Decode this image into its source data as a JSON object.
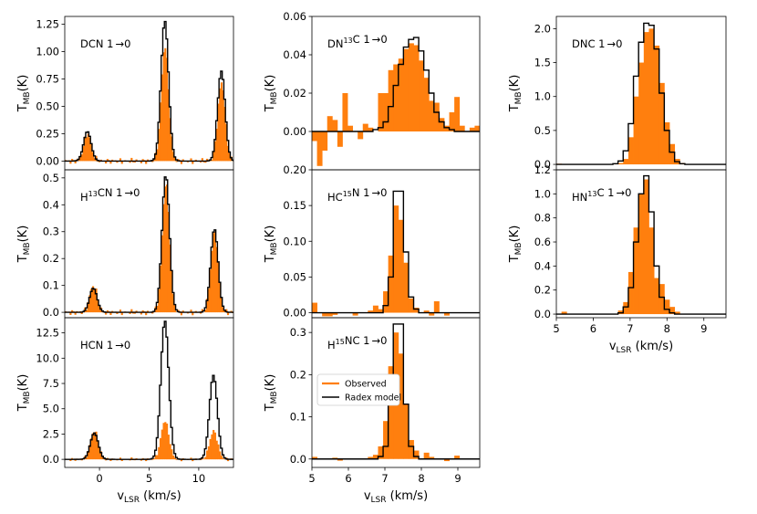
{
  "colors": {
    "observed": "#ff7f0e",
    "model": "#000000",
    "axis": "#000000"
  },
  "legend": {
    "observed_label": "Observed",
    "model_label": "Radex model"
  },
  "shared_xlabel": "v",
  "shared_xlabel_sub": "LSR",
  "shared_xlabel_unit": " (km/s)",
  "shared_ylabel": "T",
  "shared_ylabel_sub": "MB",
  "shared_ylabel_unit": "(K)",
  "chart_data": [
    {
      "id": "dcn",
      "type": "step",
      "label_parts": [
        {
          "t": "DCN 1"
        },
        {
          "t": "→",
          "arrow": true
        },
        {
          "t": "0"
        }
      ],
      "xlim": [
        -3.5,
        13.5
      ],
      "ylim": [
        -0.08,
        1.32
      ],
      "yticks": [
        0,
        0.25,
        0.5,
        0.75,
        1.0,
        1.25
      ],
      "ytick_labels": [
        "0.00",
        "0.25",
        "0.50",
        "0.75",
        "1.00",
        "1.25"
      ],
      "xticks": [],
      "xtick_labels": [],
      "obs_kind": "hfs",
      "obs_noise": 0.03,
      "peaks": [
        {
          "v": -1.3,
          "h": 0.25,
          "w": 0.38,
          "mh": 0.27
        },
        {
          "v": 6.5,
          "h": 1.05,
          "w": 0.38,
          "mh": 1.28
        },
        {
          "v": 12.2,
          "h": 0.72,
          "w": 0.38,
          "mh": 0.82
        }
      ]
    },
    {
      "id": "h13cn",
      "type": "step",
      "label_parts": [
        {
          "t": "H"
        },
        {
          "t": "13",
          "sup": true
        },
        {
          "t": "CN 1"
        },
        {
          "t": "→",
          "arrow": true
        },
        {
          "t": "0"
        }
      ],
      "xlim": [
        -3.5,
        13.5
      ],
      "ylim": [
        -0.02,
        0.53
      ],
      "yticks": [
        0,
        0.1,
        0.2,
        0.3,
        0.4,
        0.5
      ],
      "ytick_labels": [
        "0.0",
        "0.1",
        "0.2",
        "0.3",
        "0.4",
        "0.5"
      ],
      "xticks": [],
      "xtick_labels": [],
      "obs_kind": "hfs",
      "obs_noise": 0.012,
      "peaks": [
        {
          "v": -0.7,
          "h": 0.1,
          "w": 0.38,
          "mh": 0.09
        },
        {
          "v": 6.6,
          "h": 0.48,
          "w": 0.38,
          "mh": 0.51
        },
        {
          "v": 11.5,
          "h": 0.3,
          "w": 0.38,
          "mh": 0.31
        }
      ]
    },
    {
      "id": "hcn",
      "type": "step",
      "label_parts": [
        {
          "t": "HCN 1"
        },
        {
          "t": "→",
          "arrow": true
        },
        {
          "t": "0"
        }
      ],
      "xlim": [
        -3.5,
        13.5
      ],
      "ylim": [
        -0.8,
        14.0
      ],
      "yticks": [
        0,
        2.5,
        5.0,
        7.5,
        10.0,
        12.5
      ],
      "ytick_labels": [
        "0.0",
        "2.5",
        "5.0",
        "7.5",
        "10.0",
        "12.5"
      ],
      "xticks": [
        0,
        5,
        10
      ],
      "xtick_labels": [
        "0",
        "5",
        "10"
      ],
      "obs_kind": "hfs",
      "obs_noise": 0.2,
      "peaks": [
        {
          "v": -0.6,
          "h": 2.8,
          "w": 0.4,
          "mh": 2.6
        },
        {
          "v": 6.5,
          "h": 3.8,
          "w": 0.4,
          "mh": 13.7
        },
        {
          "v": 11.4,
          "h": 2.8,
          "w": 0.4,
          "mh": 8.3
        }
      ]
    },
    {
      "id": "dn13c",
      "type": "step",
      "label_parts": [
        {
          "t": "DN"
        },
        {
          "t": "13",
          "sup": true
        },
        {
          "t": "C 1"
        },
        {
          "t": "→",
          "arrow": true
        },
        {
          "t": "0"
        }
      ],
      "xlim": [
        5.0,
        9.6
      ],
      "ylim": [
        -0.02,
        0.06
      ],
      "yticks": [
        0,
        0.02,
        0.04,
        0.06
      ],
      "ytick_labels": [
        "0.00",
        "0.02",
        "0.04",
        "0.06"
      ],
      "xticks": [],
      "xtick_labels": [],
      "obs": [
        -0.005,
        -0.018,
        -0.01,
        0.008,
        0.006,
        -0.008,
        0.02,
        0.003,
        0.0,
        -0.004,
        0.004,
        0.002,
        0.0,
        0.02,
        0.02,
        0.032,
        0.035,
        0.038,
        0.043,
        0.046,
        0.045,
        0.037,
        0.028,
        0.016,
        0.015,
        0.007,
        0.003,
        0.01,
        0.018,
        0.003,
        0.0,
        0.002,
        0.003
      ],
      "model": [
        0.0,
        0.0,
        0.0,
        0.0,
        0.0,
        0.0,
        0.0,
        0.0,
        0.0,
        0.0,
        0.0,
        0.0,
        0.001,
        0.002,
        0.005,
        0.013,
        0.024,
        0.035,
        0.044,
        0.048,
        0.049,
        0.042,
        0.032,
        0.02,
        0.01,
        0.005,
        0.002,
        0.001,
        0.0,
        0.0,
        0.0,
        0.0,
        0.0
      ]
    },
    {
      "id": "hc15n",
      "type": "step",
      "label_parts": [
        {
          "t": "HC"
        },
        {
          "t": "15",
          "sup": true
        },
        {
          "t": "N 1"
        },
        {
          "t": "→",
          "arrow": true
        },
        {
          "t": "0"
        }
      ],
      "xlim": [
        5.0,
        9.6
      ],
      "ylim": [
        -0.007,
        0.2
      ],
      "yticks": [
        0,
        0.05,
        0.1,
        0.15,
        0.2
      ],
      "ytick_labels": [
        "0.00",
        "0.05",
        "0.10",
        "0.15",
        "0.20"
      ],
      "xticks": [],
      "xtick_labels": [],
      "obs": [
        0.014,
        0.0,
        -0.005,
        -0.005,
        -0.003,
        0.0,
        0.0,
        0.0,
        -0.004,
        0.0,
        0.0,
        0.003,
        0.01,
        0.005,
        0.03,
        0.08,
        0.15,
        0.13,
        0.07,
        0.02,
        0.007,
        0.0,
        0.003,
        -0.004,
        0.016,
        0.0,
        -0.004,
        0.0,
        0.0,
        0.0,
        0.0,
        0.0,
        0.0
      ],
      "model": [
        0.0,
        0.0,
        0.0,
        0.0,
        0.0,
        0.0,
        0.0,
        0.0,
        0.0,
        0.0,
        0.0,
        0.0,
        0.0,
        0.0,
        0.01,
        0.05,
        0.17,
        0.17,
        0.085,
        0.022,
        0.005,
        0.0,
        0.0,
        0.0,
        0.0,
        0.0,
        0.0,
        0.0,
        0.0,
        0.0,
        0.0,
        0.0,
        0.0
      ]
    },
    {
      "id": "h15nc",
      "type": "step",
      "label_parts": [
        {
          "t": "H"
        },
        {
          "t": "15",
          "sup": true
        },
        {
          "t": "NC 1"
        },
        {
          "t": "→",
          "arrow": true
        },
        {
          "t": "0"
        }
      ],
      "xlim": [
        5.0,
        9.6
      ],
      "ylim": [
        -0.02,
        0.335
      ],
      "yticks": [
        0,
        0.1,
        0.2,
        0.3
      ],
      "ytick_labels": [
        "0.0",
        "0.1",
        "0.2",
        "0.3"
      ],
      "xticks": [
        5,
        6,
        7,
        8,
        9
      ],
      "xtick_labels": [
        "5",
        "6",
        "7",
        "8",
        "9"
      ],
      "legend": true,
      "obs": [
        0.005,
        0.0,
        0.0,
        0.0,
        0.003,
        -0.004,
        0.0,
        0.0,
        0.0,
        0.0,
        0.0,
        0.005,
        0.01,
        0.03,
        0.09,
        0.22,
        0.3,
        0.25,
        0.13,
        0.045,
        0.02,
        0.0,
        0.015,
        0.005,
        0.0,
        0.0,
        -0.005,
        0.0,
        0.008,
        0.0,
        0.0,
        0.0,
        0.0
      ],
      "model": [
        0.0,
        0.0,
        0.0,
        0.0,
        0.0,
        0.0,
        0.0,
        0.0,
        0.0,
        0.0,
        0.0,
        0.0,
        0.0,
        0.006,
        0.03,
        0.13,
        0.32,
        0.32,
        0.13,
        0.03,
        0.006,
        0.0,
        0.0,
        0.0,
        0.0,
        0.0,
        0.0,
        0.0,
        0.0,
        0.0,
        0.0,
        0.0,
        0.0
      ]
    },
    {
      "id": "dnc",
      "type": "step",
      "label_parts": [
        {
          "t": "DNC 1"
        },
        {
          "t": "→",
          "arrow": true
        },
        {
          "t": "0"
        }
      ],
      "xlim": [
        5.0,
        9.6
      ],
      "ylim": [
        -0.08,
        2.18
      ],
      "yticks": [
        0,
        0.5,
        1.0,
        1.5,
        2.0
      ],
      "ytick_labels": [
        "0.0",
        "0.5",
        "1.0",
        "1.5",
        "2.0"
      ],
      "xticks": [],
      "xtick_labels": [],
      "obs": [
        0.01,
        0.0,
        0.0,
        0.0,
        0.0,
        0.0,
        0.0,
        0.0,
        0.0,
        0.0,
        0.0,
        0.01,
        0.02,
        0.08,
        0.4,
        1.0,
        1.5,
        1.95,
        2.0,
        1.75,
        1.2,
        0.62,
        0.3,
        0.08,
        0.02,
        0.0,
        0.0,
        0.0,
        0.0,
        0.0,
        0.0,
        0.0,
        0.0
      ],
      "model": [
        0.0,
        0.0,
        0.0,
        0.0,
        0.0,
        0.0,
        0.0,
        0.0,
        0.0,
        0.0,
        0.0,
        0.01,
        0.05,
        0.2,
        0.6,
        1.3,
        1.8,
        2.08,
        2.05,
        1.7,
        1.05,
        0.5,
        0.18,
        0.04,
        0.01,
        0.0,
        0.0,
        0.0,
        0.0,
        0.0,
        0.0,
        0.0,
        0.0
      ]
    },
    {
      "id": "hn13c",
      "type": "step",
      "label_parts": [
        {
          "t": "HN"
        },
        {
          "t": "13",
          "sup": true
        },
        {
          "t": "C 1"
        },
        {
          "t": "→",
          "arrow": true
        },
        {
          "t": "0"
        }
      ],
      "xlim": [
        5.0,
        9.6
      ],
      "ylim": [
        -0.03,
        1.2
      ],
      "yticks": [
        0,
        0.2,
        0.4,
        0.6,
        0.8,
        1.0,
        1.2
      ],
      "ytick_labels": [
        "0.0",
        "0.2",
        "0.4",
        "0.6",
        "0.8",
        "1.0",
        "1.2"
      ],
      "xticks": [
        5,
        6,
        7,
        8,
        9
      ],
      "xtick_labels": [
        "5",
        "6",
        "7",
        "8",
        "9"
      ],
      "obs": [
        0.0,
        0.02,
        0.0,
        0.0,
        0.0,
        0.0,
        0.0,
        0.0,
        0.0,
        0.0,
        0.0,
        0.0,
        0.03,
        0.1,
        0.35,
        0.72,
        1.0,
        1.12,
        0.72,
        0.3,
        0.25,
        0.12,
        0.06,
        0.02,
        0.0,
        0.0,
        0.0,
        0.0,
        0.0,
        0.0,
        0.0,
        0.0,
        0.0
      ],
      "model": [
        0.0,
        0.0,
        0.0,
        0.0,
        0.0,
        0.0,
        0.0,
        0.0,
        0.0,
        0.0,
        0.0,
        0.0,
        0.01,
        0.06,
        0.22,
        0.6,
        1.0,
        1.15,
        0.85,
        0.4,
        0.14,
        0.04,
        0.01,
        0.0,
        0.0,
        0.0,
        0.0,
        0.0,
        0.0,
        0.0,
        0.0,
        0.0,
        0.0
      ]
    }
  ]
}
